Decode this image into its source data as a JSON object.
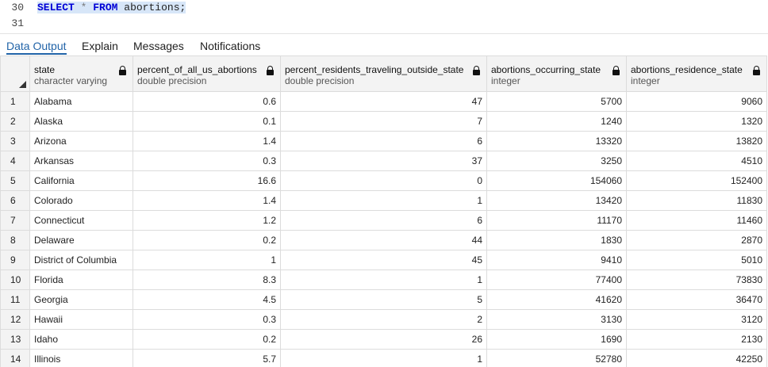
{
  "editor": {
    "lines": [
      {
        "num": "30",
        "keyword1": "SELECT",
        "op": "*",
        "keyword2": "FROM",
        "rest": "abortions;"
      },
      {
        "num": "31"
      }
    ]
  },
  "tabs": [
    {
      "label": "Data Output",
      "active": true
    },
    {
      "label": "Explain"
    },
    {
      "label": "Messages"
    },
    {
      "label": "Notifications"
    }
  ],
  "columns": [
    {
      "name": "state",
      "type": "character varying"
    },
    {
      "name": "percent_of_all_us_abortions",
      "type": "double precision"
    },
    {
      "name": "percent_residents_traveling_outside_state",
      "type": "double precision"
    },
    {
      "name": "abortions_occurring_state",
      "type": "integer"
    },
    {
      "name": "abortions_residence_state",
      "type": "integer"
    }
  ],
  "rows": [
    [
      "1",
      "Alabama",
      "0.6",
      "47",
      "5700",
      "9060"
    ],
    [
      "2",
      "Alaska",
      "0.1",
      "7",
      "1240",
      "1320"
    ],
    [
      "3",
      "Arizona",
      "1.4",
      "6",
      "13320",
      "13820"
    ],
    [
      "4",
      "Arkansas",
      "0.3",
      "37",
      "3250",
      "4510"
    ],
    [
      "5",
      "California",
      "16.6",
      "0",
      "154060",
      "152400"
    ],
    [
      "6",
      "Colorado",
      "1.4",
      "1",
      "13420",
      "11830"
    ],
    [
      "7",
      "Connecticut",
      "1.2",
      "6",
      "11170",
      "11460"
    ],
    [
      "8",
      "Delaware",
      "0.2",
      "44",
      "1830",
      "2870"
    ],
    [
      "9",
      "District of Columbia",
      "1",
      "45",
      "9410",
      "5010"
    ],
    [
      "10",
      "Florida",
      "8.3",
      "1",
      "77400",
      "73830"
    ],
    [
      "11",
      "Georgia",
      "4.5",
      "5",
      "41620",
      "36470"
    ],
    [
      "12",
      "Hawaii",
      "0.3",
      "2",
      "3130",
      "3120"
    ],
    [
      "13",
      "Idaho",
      "0.2",
      "26",
      "1690",
      "2130"
    ],
    [
      "14",
      "Illinois",
      "5.7",
      "1",
      "52780",
      "42250"
    ]
  ],
  "colors": {
    "accent": "#2264a8",
    "keyword": "#0000d6",
    "selection": "#d7e6f8"
  }
}
